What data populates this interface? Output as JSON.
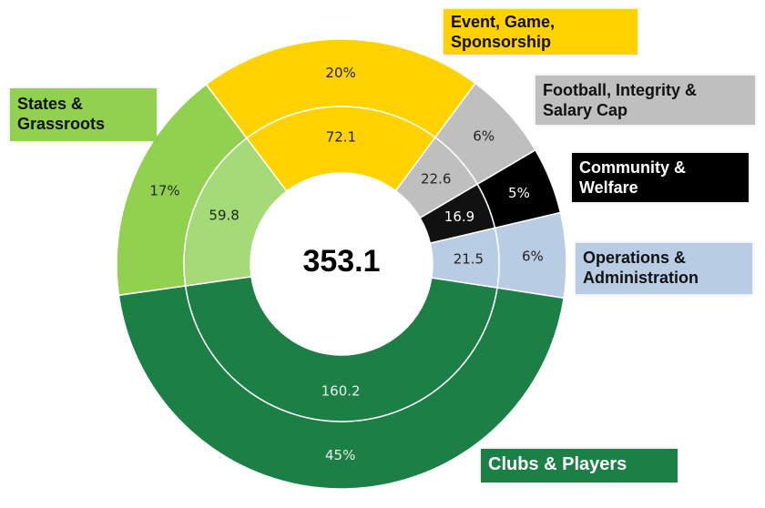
{
  "chart_data": {
    "type": "pie",
    "subtype": "two-ring donut",
    "total": 353.1,
    "total_label": "353.1",
    "segments": [
      {
        "name": "Event, Game, Sponsorship",
        "label_lines": [
          "Event, Game,",
          "Sponsorship"
        ],
        "value": 72.1,
        "value_label": "72.1",
        "percent_label": "20%",
        "color": "#FFD200",
        "inner_color": "#FFD200",
        "text_color": "#222222",
        "label_text_color": "#111111"
      },
      {
        "name": "Football, Integrity & Salary Cap",
        "label_lines": [
          "Football, Integrity &",
          "Salary Cap"
        ],
        "value": 22.6,
        "value_label": "22.6",
        "percent_label": "6%",
        "color": "#BFBFBF",
        "inner_color": "#BFBFBF",
        "text_color": "#222222",
        "label_text_color": "#111111"
      },
      {
        "name": "Community & Welfare",
        "label_lines": [
          "Community &",
          "Welfare"
        ],
        "value": 16.9,
        "value_label": "16.9",
        "percent_label": "5%",
        "color": "#000000",
        "inner_color": "#111111",
        "text_color": "#FFFFFF",
        "label_text_color": "#FFFFFF"
      },
      {
        "name": "Operations & Administration",
        "label_lines": [
          "Operations &",
          "Administration"
        ],
        "value": 21.5,
        "value_label": "21.5",
        "percent_label": "6%",
        "color": "#B8CCE4",
        "inner_color": "#B8CCE4",
        "text_color": "#222222",
        "label_text_color": "#111111"
      },
      {
        "name": "Clubs & Players",
        "label_lines": [
          "Clubs & Players"
        ],
        "value": 160.2,
        "value_label": "160.2",
        "percent_label": "45%",
        "color": "#1B7F46",
        "inner_color": "#1B7F46",
        "text_color": "#E8F2EC",
        "label_text_color": "#FFFFFF"
      },
      {
        "name": "States & Grassroots",
        "label_lines": [
          "States &",
          "Grassroots"
        ],
        "value": 59.8,
        "value_label": "59.8",
        "percent_label": "17%",
        "color": "#92D050",
        "inner_color": "#A6D977",
        "text_color": "#1a2a10",
        "label_text_color": "#111111"
      }
    ]
  }
}
